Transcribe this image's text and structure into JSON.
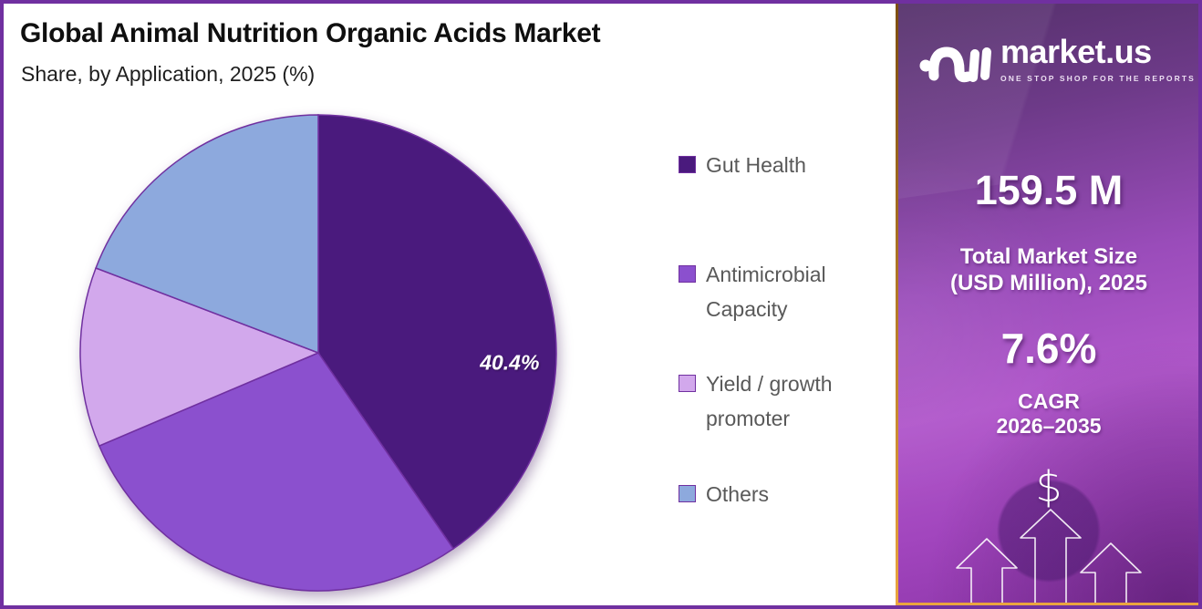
{
  "header": {
    "title": "Global Animal Nutrition Organic Acids Market",
    "subtitle": "Share, by Application, 2025 (%)"
  },
  "chart_data": {
    "type": "pie",
    "title": "Global Animal Nutrition Organic Acids Market Share, by Application, 2025 (%)",
    "unit": "%",
    "categories": [
      "Gut Health",
      "Antimicrobial Capacity",
      "Yield / growth promoter",
      "Others"
    ],
    "values": [
      40.4,
      28.2,
      12.2,
      19.2
    ],
    "colors": [
      "#4a1a7d",
      "#8b50ce",
      "#d2a8ec",
      "#8da9dd"
    ],
    "stroke_color": "#7030a0",
    "data_labels": [
      "40.4%",
      "",
      "",
      ""
    ],
    "start_angle_deg": 0,
    "clockwise": true,
    "legend_position": "right"
  },
  "legend": {
    "items": [
      {
        "label": "Gut Health",
        "color": "#4a1a7d"
      },
      {
        "label": "Antimicrobial Capacity",
        "color": "#8b50ce"
      },
      {
        "label": "Yield / growth promoter",
        "color": "#d2a8ec"
      },
      {
        "label": "Others",
        "color": "#8da9dd"
      }
    ]
  },
  "sidebar": {
    "brand": {
      "name": "market.us",
      "tagline": "ONE STOP SHOP FOR THE REPORTS"
    },
    "market_size": {
      "value": "159.5 M",
      "label_line1": "Total Market Size",
      "label_line2": "(USD Million), 2025"
    },
    "cagr": {
      "value": "7.6%",
      "label_line1": "CAGR",
      "label_line2": "2026–2035"
    },
    "currency_symbol": "$"
  },
  "colors": {
    "frame_border": "#7030a0",
    "sidebar_border_gold_top": "#7d4e10",
    "sidebar_border_gold_bottom": "#eaa43f",
    "legend_text": "#595959"
  }
}
